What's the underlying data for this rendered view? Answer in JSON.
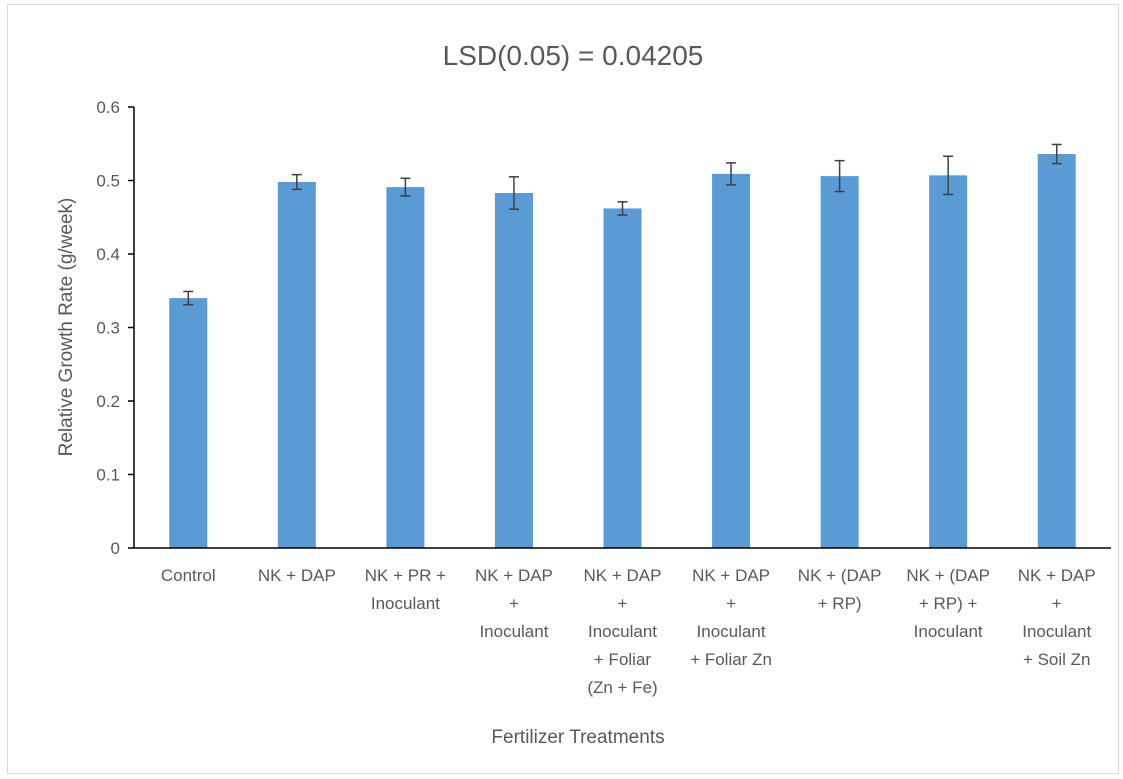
{
  "chart_data": {
    "type": "bar",
    "title": "LSD(0.05) = 0.04205",
    "xlabel": "Fertilizer Treatments",
    "ylabel": "Relative Growth Rate (g/week)",
    "ylim": [
      0,
      0.6
    ],
    "yticks": [
      "0",
      "0.1",
      "0.2",
      "0.3",
      "0.4",
      "0.5",
      "0.6"
    ],
    "grid": false,
    "legend": "none",
    "categories": [
      "Control",
      "NK + DAP",
      "NK + PR + Inoculant",
      "NK + DAP + Inoculant",
      "NK + DAP + Inoculant + Foliar (Zn + Fe)",
      "NK + DAP + Inoculant + Foliar Zn",
      "NK + (DAP + RP)",
      "NK + (DAP + RP) + Inoculant",
      "NK + DAP + Inoculant + Soil Zn"
    ],
    "category_lines": [
      [
        "Control"
      ],
      [
        "NK + DAP"
      ],
      [
        "NK + PR +",
        "Inoculant"
      ],
      [
        "NK + DAP",
        "+",
        "Inoculant"
      ],
      [
        "NK + DAP",
        "+",
        "Inoculant",
        "+ Foliar",
        "(Zn + Fe)"
      ],
      [
        "NK + DAP",
        "+",
        "Inoculant",
        "+ Foliar Zn"
      ],
      [
        "NK + (DAP",
        "+ RP)"
      ],
      [
        "NK + (DAP",
        "+ RP) +",
        "Inoculant"
      ],
      [
        "NK + DAP",
        "+",
        "Inoculant",
        "+ Soil Zn"
      ]
    ],
    "values": [
      0.34,
      0.498,
      0.491,
      0.483,
      0.462,
      0.509,
      0.506,
      0.507,
      0.536
    ],
    "error": [
      0.009,
      0.01,
      0.012,
      0.022,
      0.009,
      0.015,
      0.021,
      0.026,
      0.013
    ],
    "colors": {
      "bar": "#5b9bd5",
      "error": "#404040",
      "axis": "#000000",
      "text": "#595959"
    }
  }
}
